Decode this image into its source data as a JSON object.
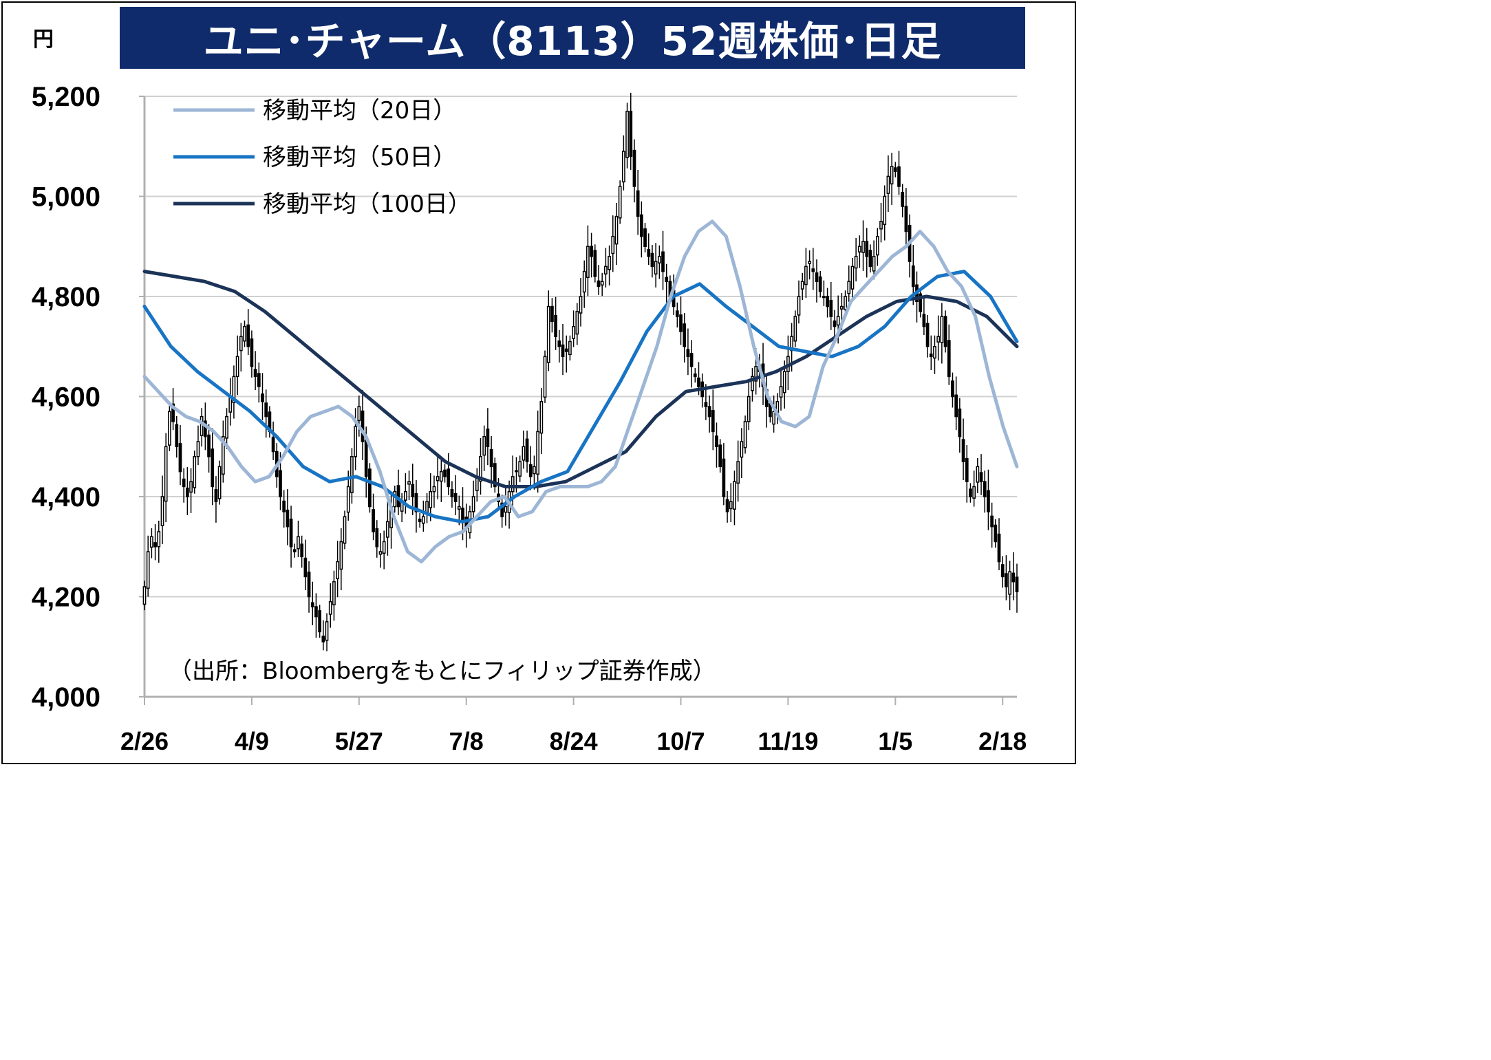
{
  "title": "ユニ･チャーム（8113）52週株価･日足",
  "unit": "円",
  "source": "（出所：Bloombergをもとにフィリップ証券作成）",
  "colors": {
    "title_bg": "#0f2b6b",
    "candle": "#000000",
    "ma20": "#9db6d6",
    "ma50": "#1874c4",
    "ma100": "#1c3358",
    "grid": "#d0d0d0"
  },
  "chart_data": {
    "type": "candlestick",
    "title": "ユニ･チャーム（8113）52週株価･日足",
    "ylabel": "円",
    "ylim": [
      4000,
      5200
    ],
    "yticks": [
      4000,
      4200,
      4400,
      4600,
      4800,
      5000,
      5200
    ],
    "ytick_labels": [
      "4,000",
      "4,200",
      "4,400",
      "4,600",
      "4,800",
      "5,000",
      "5,200"
    ],
    "xtick_labels": [
      "2/26",
      "4/9",
      "5/27",
      "7/8",
      "8/24",
      "10/7",
      "11/19",
      "1/5",
      "2/18"
    ],
    "xtick_index": [
      0,
      30,
      60,
      90,
      120,
      150,
      180,
      210,
      240
    ],
    "grid": true,
    "legend_position": "top-left",
    "legend": [
      "移動平均（20日）",
      "移動平均（50日）",
      "移動平均（100日）"
    ],
    "close": [
      4220,
      4290,
      4320,
      4300,
      4330,
      4400,
      4500,
      4570,
      4550,
      4500,
      4450,
      4420,
      4400,
      4430,
      4480,
      4510,
      4560,
      4520,
      4480,
      4420,
      4390,
      4460,
      4520,
      4560,
      4600,
      4640,
      4680,
      4720,
      4740,
      4700,
      4660,
      4640,
      4620,
      4590,
      4560,
      4530,
      4490,
      4440,
      4400,
      4370,
      4340,
      4300,
      4290,
      4320,
      4280,
      4240,
      4200,
      4180,
      4160,
      4130,
      4110,
      4150,
      4190,
      4230,
      4270,
      4310,
      4360,
      4420,
      4480,
      4540,
      4580,
      4510,
      4440,
      4380,
      4330,
      4300,
      4290,
      4310,
      4350,
      4380,
      4410,
      4380,
      4390,
      4410,
      4430,
      4400,
      4370,
      4350,
      4360,
      4390,
      4410,
      4420,
      4440,
      4450,
      4440,
      4420,
      4400,
      4390,
      4380,
      4350,
      4340,
      4370,
      4400,
      4440,
      4480,
      4520,
      4500,
      4460,
      4420,
      4390,
      4360,
      4380,
      4410,
      4440,
      4450,
      4470,
      4500,
      4470,
      4440,
      4460,
      4530,
      4590,
      4680,
      4780,
      4750,
      4720,
      4700,
      4680,
      4690,
      4710,
      4740,
      4770,
      4800,
      4850,
      4900,
      4880,
      4840,
      4820,
      4830,
      4860,
      4880,
      4920,
      4960,
      5020,
      5090,
      5170,
      5080,
      5020,
      4960,
      4920,
      4900,
      4880,
      4860,
      4870,
      4880,
      4850,
      4830,
      4800,
      4780,
      4760,
      4730,
      4700,
      4680,
      4660,
      4640,
      4620,
      4600,
      4580,
      4560,
      4530,
      4500,
      4460,
      4400,
      4370,
      4390,
      4430,
      4470,
      4510,
      4550,
      4600,
      4640,
      4660,
      4650,
      4620,
      4580,
      4560,
      4570,
      4590,
      4620,
      4650,
      4680,
      4720,
      4760,
      4800,
      4830,
      4860,
      4870,
      4850,
      4830,
      4810,
      4800,
      4780,
      4760,
      4740,
      4760,
      4780,
      4800,
      4830,
      4860,
      4880,
      4900,
      4910,
      4880,
      4860,
      4880,
      4920,
      4950,
      5000,
      5040,
      5060,
      5050,
      5020,
      4980,
      4930,
      4870,
      4820,
      4790,
      4770,
      4740,
      4700,
      4680,
      4700,
      4720,
      4760,
      4700,
      4640,
      4600,
      4560,
      4520,
      4470,
      4430,
      4400,
      4420,
      4460,
      4430,
      4400,
      4370,
      4340,
      4310,
      4270,
      4240,
      4220,
      4250,
      4230,
      4210
    ],
    "ma20": [
      4640,
      4610,
      4580,
      4560,
      4550,
      4530,
      4500,
      4460,
      4430,
      4440,
      4480,
      4530,
      4560,
      4570,
      4580,
      4560,
      4520,
      4450,
      4360,
      4290,
      4270,
      4300,
      4320,
      4330,
      4360,
      4390,
      4400,
      4360,
      4370,
      4410,
      4420,
      4420,
      4420,
      4430,
      4460,
      4540,
      4620,
      4700,
      4800,
      4880,
      4930,
      4950,
      4920,
      4820,
      4700,
      4600,
      4550,
      4540,
      4560,
      4660,
      4720,
      4790,
      4820,
      4850,
      4880,
      4900,
      4930,
      4900,
      4850,
      4820,
      4760,
      4640,
      4540,
      4460
    ],
    "ma50": [
      4780,
      4700,
      4650,
      4610,
      4570,
      4520,
      4460,
      4430,
      4440,
      4420,
      4380,
      4360,
      4350,
      4360,
      4400,
      4430,
      4450,
      4540,
      4630,
      4730,
      4800,
      4825,
      4780,
      4740,
      4700,
      4690,
      4680,
      4700,
      4740,
      4800,
      4840,
      4850,
      4800,
      4710
    ],
    "ma100": [
      4850,
      4840,
      4830,
      4810,
      4770,
      4720,
      4670,
      4620,
      4570,
      4520,
      4470,
      4440,
      4420,
      4420,
      4430,
      4460,
      4490,
      4560,
      4610,
      4620,
      4630,
      4650,
      4680,
      4720,
      4760,
      4790,
      4800,
      4790,
      4760,
      4700
    ]
  }
}
